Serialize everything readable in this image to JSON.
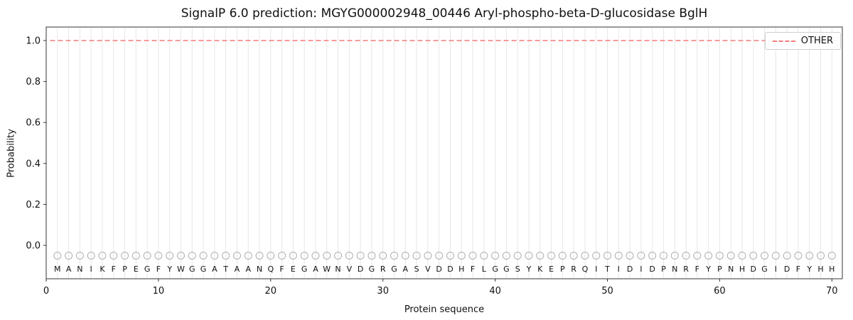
{
  "figure": {
    "background": "#ffffff"
  },
  "chart_data": {
    "type": "line",
    "title": "SignalP 6.0 prediction: MGYG000002948_00446 Aryl-phospho-beta-D-glucosidase BglH",
    "xlabel": "Protein sequence",
    "ylabel": "Probability",
    "xlim": [
      0,
      70.93
    ],
    "ylim": [
      -0.163,
      1.066
    ],
    "x_ticks": [
      0,
      10,
      20,
      30,
      40,
      50,
      60,
      70
    ],
    "y_ticks": [
      0.0,
      0.2,
      0.4,
      0.6,
      0.8,
      1.0
    ],
    "grid": {
      "vertical_per_residue": true,
      "color": "#e7e7e7"
    },
    "legend": {
      "position": "upper right",
      "entries": [
        {
          "label": "OTHER",
          "linestyle": "dashed",
          "color": "#f47c7c"
        }
      ]
    },
    "series": [
      {
        "name": "OTHER",
        "style": "dashed",
        "color": "#f47c7c",
        "constant_value": 1.0,
        "x_start": 1,
        "x_end": 70
      }
    ],
    "sequence": "MANIKFPEGFYWGGATAANQFEGAWNVDGRGASVDDHFLGGSYKEPRQITIDIDPNRFYPNHDGIDFYHH",
    "residue_markers": {
      "shape": "circle",
      "y": -0.05,
      "color": "#b0b0b0"
    },
    "letter_row_y": -0.128,
    "axis_color": "#333333",
    "text_color": "#111111"
  }
}
